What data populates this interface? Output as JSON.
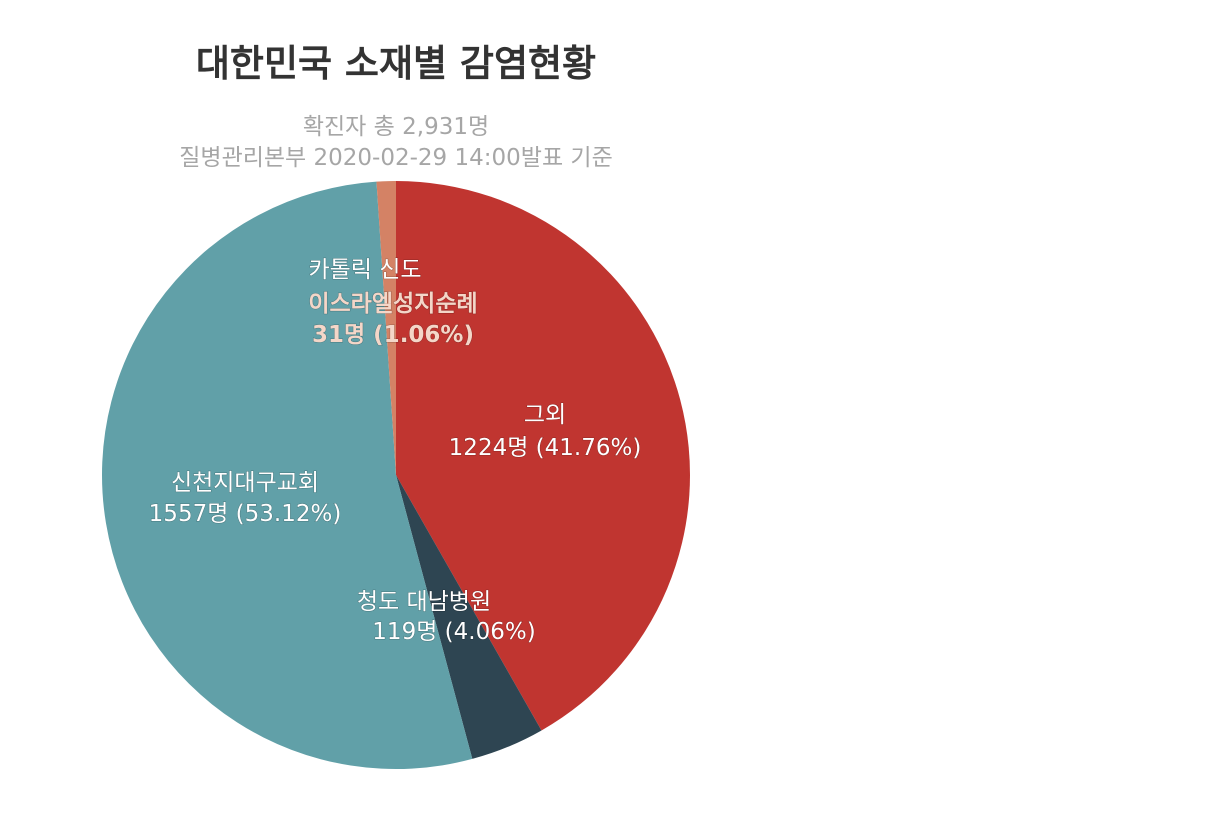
{
  "chart_data": {
    "type": "pie",
    "title": "대한민국 소재별 감염현황",
    "subtitle_lines": [
      "확진자 총 2,931명",
      "질병관리본부 2020-02-29 14:00발표 기준"
    ],
    "slices": [
      {
        "id": "others",
        "name": "그외",
        "value": 1224,
        "percent": 41.76,
        "color": "#c03530",
        "value_label": "1224명 (41.76%)"
      },
      {
        "id": "cheongdo",
        "name": "청도 대남병원",
        "value": 119,
        "percent": 4.06,
        "color": "#2e4552",
        "value_label": "119명 (4.06%)"
      },
      {
        "id": "shincheonji",
        "name": "신천지대구교회",
        "value": 1557,
        "percent": 53.12,
        "color": "#61a0a8",
        "value_label": "1557명 (53.12%)"
      },
      {
        "id": "catholic",
        "name": "이스라엘성지순례",
        "prefix": "카톨릭 신도",
        "value": 31,
        "percent": 1.06,
        "color": "#d48265",
        "value_label": "31명 (1.06%)"
      }
    ],
    "start_angle": "12 o'clock",
    "direction": "clockwise",
    "legend": "none"
  }
}
